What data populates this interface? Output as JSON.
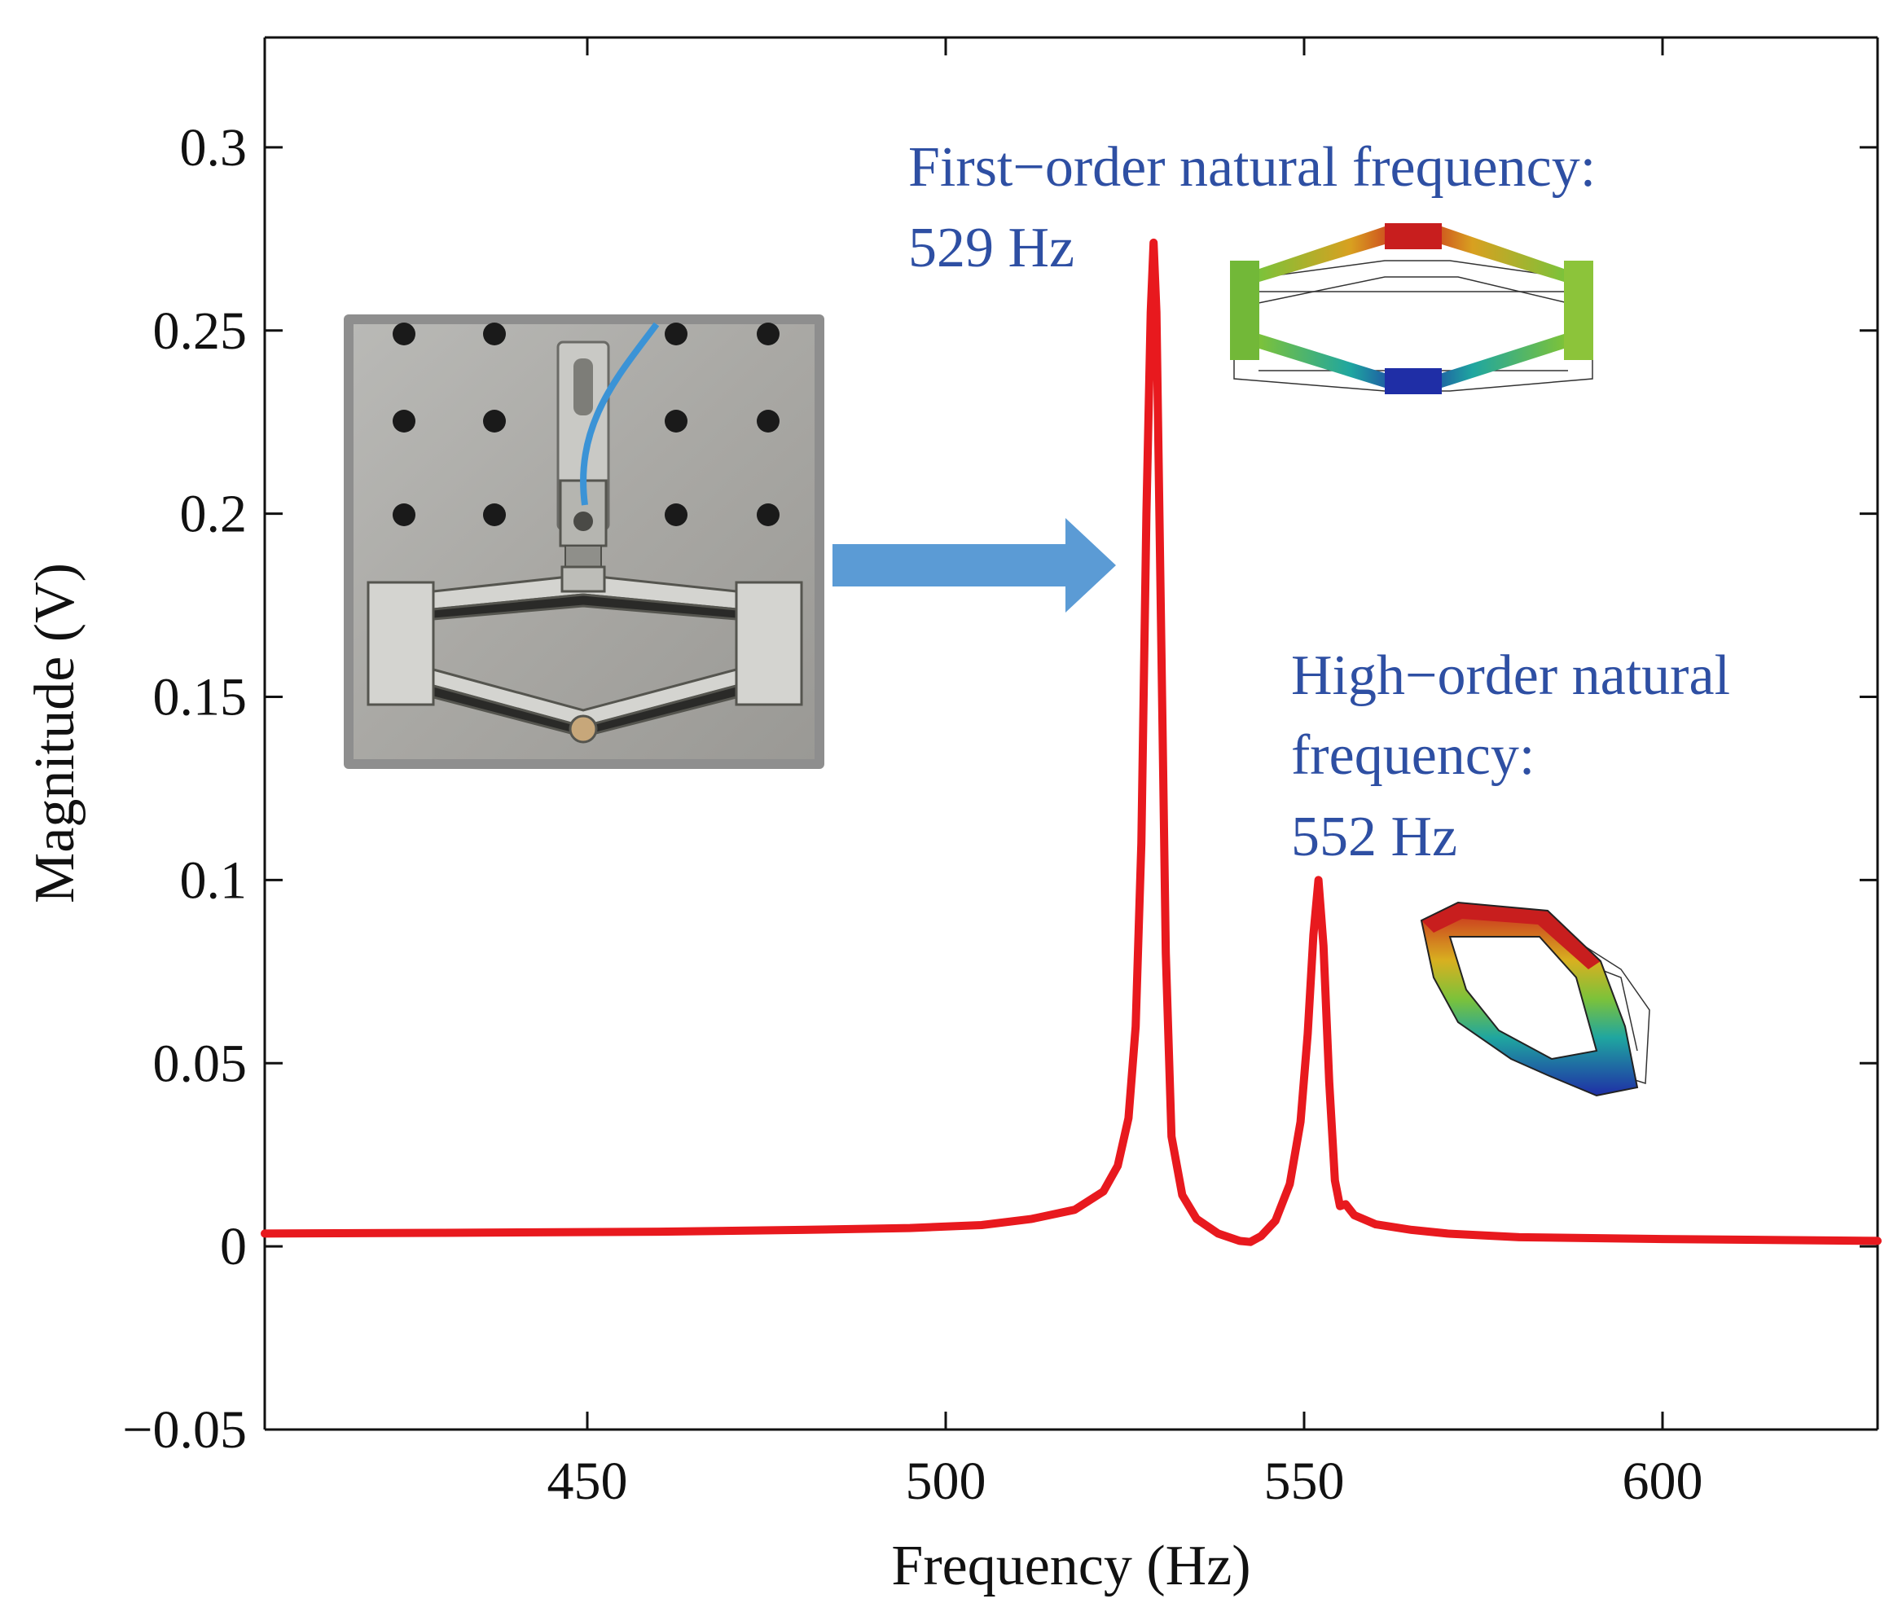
{
  "chart_data": {
    "type": "line",
    "xlabel": "Frequency (Hz)",
    "ylabel": "Magnitude (V)",
    "xlim": [
      405,
      630
    ],
    "ylim": [
      -0.05,
      0.33
    ],
    "x_ticks": [
      450,
      500,
      550,
      600
    ],
    "x_tick_labels": [
      "450",
      "500",
      "550",
      "600"
    ],
    "y_ticks": [
      -0.05,
      0,
      0.05,
      0.1,
      0.15,
      0.2,
      0.25,
      0.3
    ],
    "y_tick_labels": [
      "−0.05",
      "0",
      "0.05",
      "0.1",
      "0.15",
      "0.2",
      "0.25",
      "0.3"
    ],
    "grid": false,
    "series": [
      {
        "name": "Magnitude",
        "color": "#e8191e",
        "x": [
          405,
          430,
          460,
          480,
          495,
          505,
          512,
          518,
          522,
          524,
          525.5,
          526.5,
          527.3,
          528,
          528.6,
          529,
          529.4,
          530,
          530.7,
          531.5,
          533,
          535,
          538,
          541,
          542.5,
          544,
          546,
          548,
          549.5,
          550.5,
          551.3,
          552,
          552.7,
          553.5,
          554.3,
          555,
          555.8,
          557,
          560,
          565,
          570,
          580,
          600,
          630
        ],
        "values": [
          0.0035,
          0.0037,
          0.004,
          0.0045,
          0.005,
          0.0058,
          0.0075,
          0.01,
          0.015,
          0.022,
          0.035,
          0.06,
          0.11,
          0.2,
          0.255,
          0.274,
          0.255,
          0.175,
          0.08,
          0.03,
          0.014,
          0.0075,
          0.0035,
          0.0015,
          0.0012,
          0.0028,
          0.007,
          0.017,
          0.034,
          0.058,
          0.085,
          0.1,
          0.082,
          0.045,
          0.018,
          0.011,
          0.0115,
          0.0085,
          0.006,
          0.0045,
          0.0035,
          0.0025,
          0.002,
          0.0015
        ]
      }
    ],
    "annotations": [
      {
        "lines": [
          "First−order natural frequency:",
          "529 Hz"
        ],
        "color": "#2e4fa3",
        "x": 529,
        "y": 0.274
      },
      {
        "lines": [
          "High−order natural",
          "frequency:",
          "552 Hz"
        ],
        "color": "#2e4fa3",
        "x": 552,
        "y": 0.1
      }
    ],
    "arrow_color": "#5b9bd5"
  }
}
